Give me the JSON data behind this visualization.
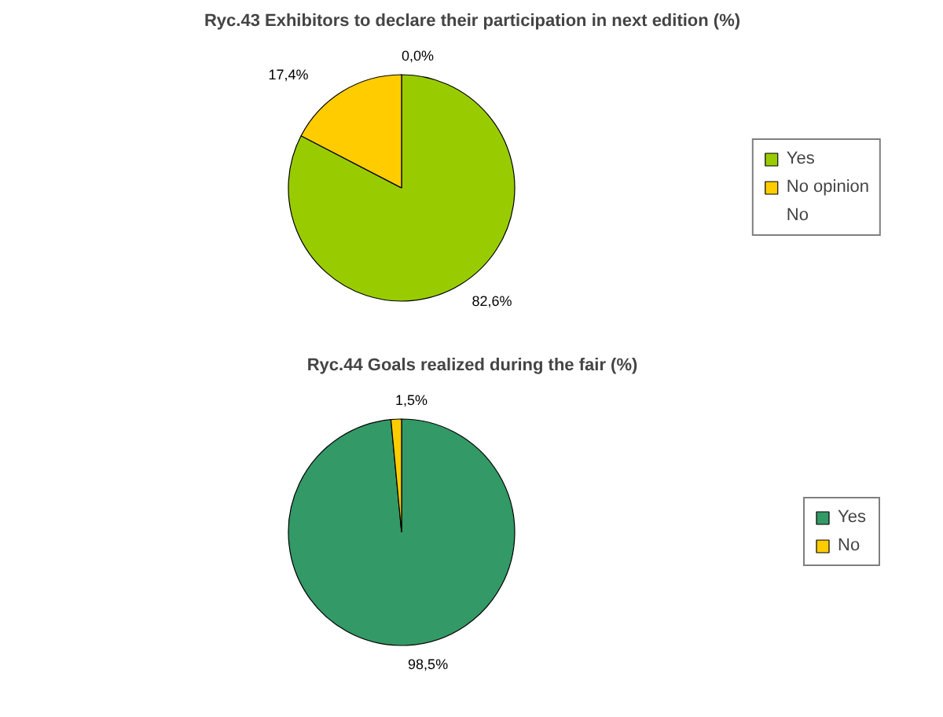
{
  "chart_data": [
    {
      "type": "pie",
      "title": "Ryc.43 Exhibitors to declare their participation in next edition (%)",
      "categories": [
        "Yes",
        "No opinion",
        "No"
      ],
      "values": [
        82.6,
        17.4,
        0.0
      ],
      "colors": [
        "#99cc00",
        "#ffcc00",
        "#cc0000"
      ],
      "value_labels": [
        "82,6%",
        "17,4%",
        "0,0%"
      ],
      "legend": "right"
    },
    {
      "type": "pie",
      "title": "Ryc.44 Goals realized during the fair (%)",
      "categories": [
        "Yes",
        "No"
      ],
      "values": [
        98.5,
        1.5
      ],
      "colors": [
        "#339966",
        "#ffcc00"
      ],
      "value_labels": [
        "98,5%",
        "1,5%"
      ],
      "legend": "right"
    }
  ]
}
